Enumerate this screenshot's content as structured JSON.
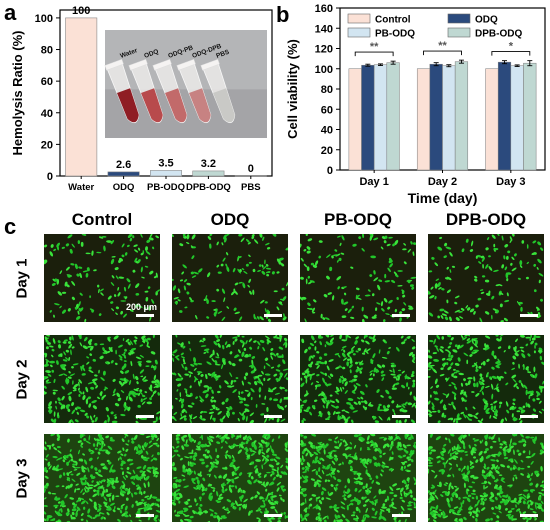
{
  "panel_labels": {
    "a": "a",
    "b": "b",
    "c": "c"
  },
  "chart_data": [
    {
      "type": "bar",
      "panel": "a",
      "ylabel": "Hemolysis Ratio (%)",
      "ylim": [
        0,
        105
      ],
      "yticks": [
        "0",
        "20",
        "40",
        "60",
        "80",
        "100"
      ],
      "categories": [
        "Water",
        "ODQ",
        "PB-ODQ",
        "DPB-ODQ",
        "PBS"
      ],
      "values": [
        100,
        2.6,
        3.5,
        3.2,
        0
      ],
      "value_labels": [
        "100",
        "2.6",
        "3.5",
        "3.2",
        "0"
      ],
      "colors": [
        "#fbe1d6",
        "#2b4a7d",
        "#d2e5f1",
        "#bfd8d2",
        "#ffffff"
      ],
      "inset": {
        "tube_labels": [
          "Water",
          "ODQ",
          "ODQ-PB",
          "ODQ-DPB",
          "PBS"
        ]
      }
    },
    {
      "type": "bar",
      "panel": "b",
      "xlabel": "Time (day)",
      "ylabel": "Cell viability (%)",
      "ylim": [
        0,
        160
      ],
      "yticks": [
        "0",
        "20",
        "40",
        "60",
        "80",
        "100",
        "120",
        "140",
        "160"
      ],
      "categories": [
        "Day 1",
        "Day 2",
        "Day 3"
      ],
      "series": [
        {
          "name": "Control",
          "color": "#fbe1d6",
          "values": [
            100,
            100,
            100
          ]
        },
        {
          "name": "ODQ",
          "color": "#2b4a7d",
          "values": [
            103.5,
            104.5,
            106.5
          ]
        },
        {
          "name": "PB-ODQ",
          "color": "#d2e5f1",
          "values": [
            104,
            103,
            103
          ]
        },
        {
          "name": "DPB-ODQ",
          "color": "#bfd8d2",
          "values": [
            106,
            107,
            105.5
          ]
        }
      ],
      "errors": [
        [
          0,
          0,
          0
        ],
        [
          1.0,
          1.5,
          1.5
        ],
        [
          0.8,
          1.0,
          0.8
        ],
        [
          1.5,
          1.5,
          2.5
        ]
      ],
      "significance": [
        "**",
        "**",
        "*"
      ],
      "legend_position": "top"
    }
  ],
  "micrographs": {
    "columns": [
      "Control",
      "ODQ",
      "PB-ODQ",
      "DPB-ODQ"
    ],
    "rows": [
      "Day 1",
      "Day 2",
      "Day 3"
    ],
    "scale_label": "200 μm"
  }
}
